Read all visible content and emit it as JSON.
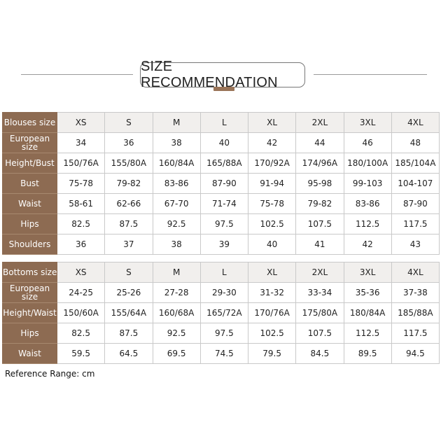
{
  "title": "SIZE RECOMMENDATION",
  "colors": {
    "row_header_bg": "#8d6b52",
    "accent_bar": "#9a7458",
    "header_row_bg": "#f1efed"
  },
  "blouses": {
    "rows": [
      {
        "label": "Blouses size",
        "values": [
          "XS",
          "S",
          "M",
          "L",
          "XL",
          "2XL",
          "3XL",
          "4XL"
        ]
      },
      {
        "label": "European size",
        "values": [
          "34",
          "36",
          "38",
          "40",
          "42",
          "44",
          "46",
          "48"
        ]
      },
      {
        "label": "Height/Bust",
        "values": [
          "150/76A",
          "155/80A",
          "160/84A",
          "165/88A",
          "170/92A",
          "174/96A",
          "180/100A",
          "185/104A"
        ]
      },
      {
        "label": "Bust",
        "values": [
          "75-78",
          "79-82",
          "83-86",
          "87-90",
          "91-94",
          "95-98",
          "99-103",
          "104-107"
        ]
      },
      {
        "label": "Waist",
        "values": [
          "58-61",
          "62-66",
          "67-70",
          "71-74",
          "75-78",
          "79-82",
          "83-86",
          "87-90"
        ]
      },
      {
        "label": "Hips",
        "values": [
          "82.5",
          "87.5",
          "92.5",
          "97.5",
          "102.5",
          "107.5",
          "112.5",
          "117.5"
        ]
      },
      {
        "label": "Shoulders",
        "values": [
          "36",
          "37",
          "38",
          "39",
          "40",
          "41",
          "42",
          "43"
        ]
      }
    ]
  },
  "bottoms": {
    "rows": [
      {
        "label": "Bottoms size",
        "values": [
          "XS",
          "S",
          "M",
          "L",
          "XL",
          "2XL",
          "3XL",
          "4XL"
        ]
      },
      {
        "label": "European size",
        "values": [
          "24-25",
          "25-26",
          "27-28",
          "29-30",
          "31-32",
          "33-34",
          "35-36",
          "37-38"
        ]
      },
      {
        "label": "Height/Waist",
        "values": [
          "150/60A",
          "155/64A",
          "160/68A",
          "165/72A",
          "170/76A",
          "175/80A",
          "180/84A",
          "185/88A"
        ]
      },
      {
        "label": "Hips",
        "values": [
          "82.5",
          "87.5",
          "92.5",
          "97.5",
          "102.5",
          "107.5",
          "112.5",
          "117.5"
        ]
      },
      {
        "label": "Waist",
        "values": [
          "59.5",
          "64.5",
          "69.5",
          "74.5",
          "79.5",
          "84.5",
          "89.5",
          "94.5"
        ]
      }
    ]
  },
  "note": "Reference Range: cm"
}
